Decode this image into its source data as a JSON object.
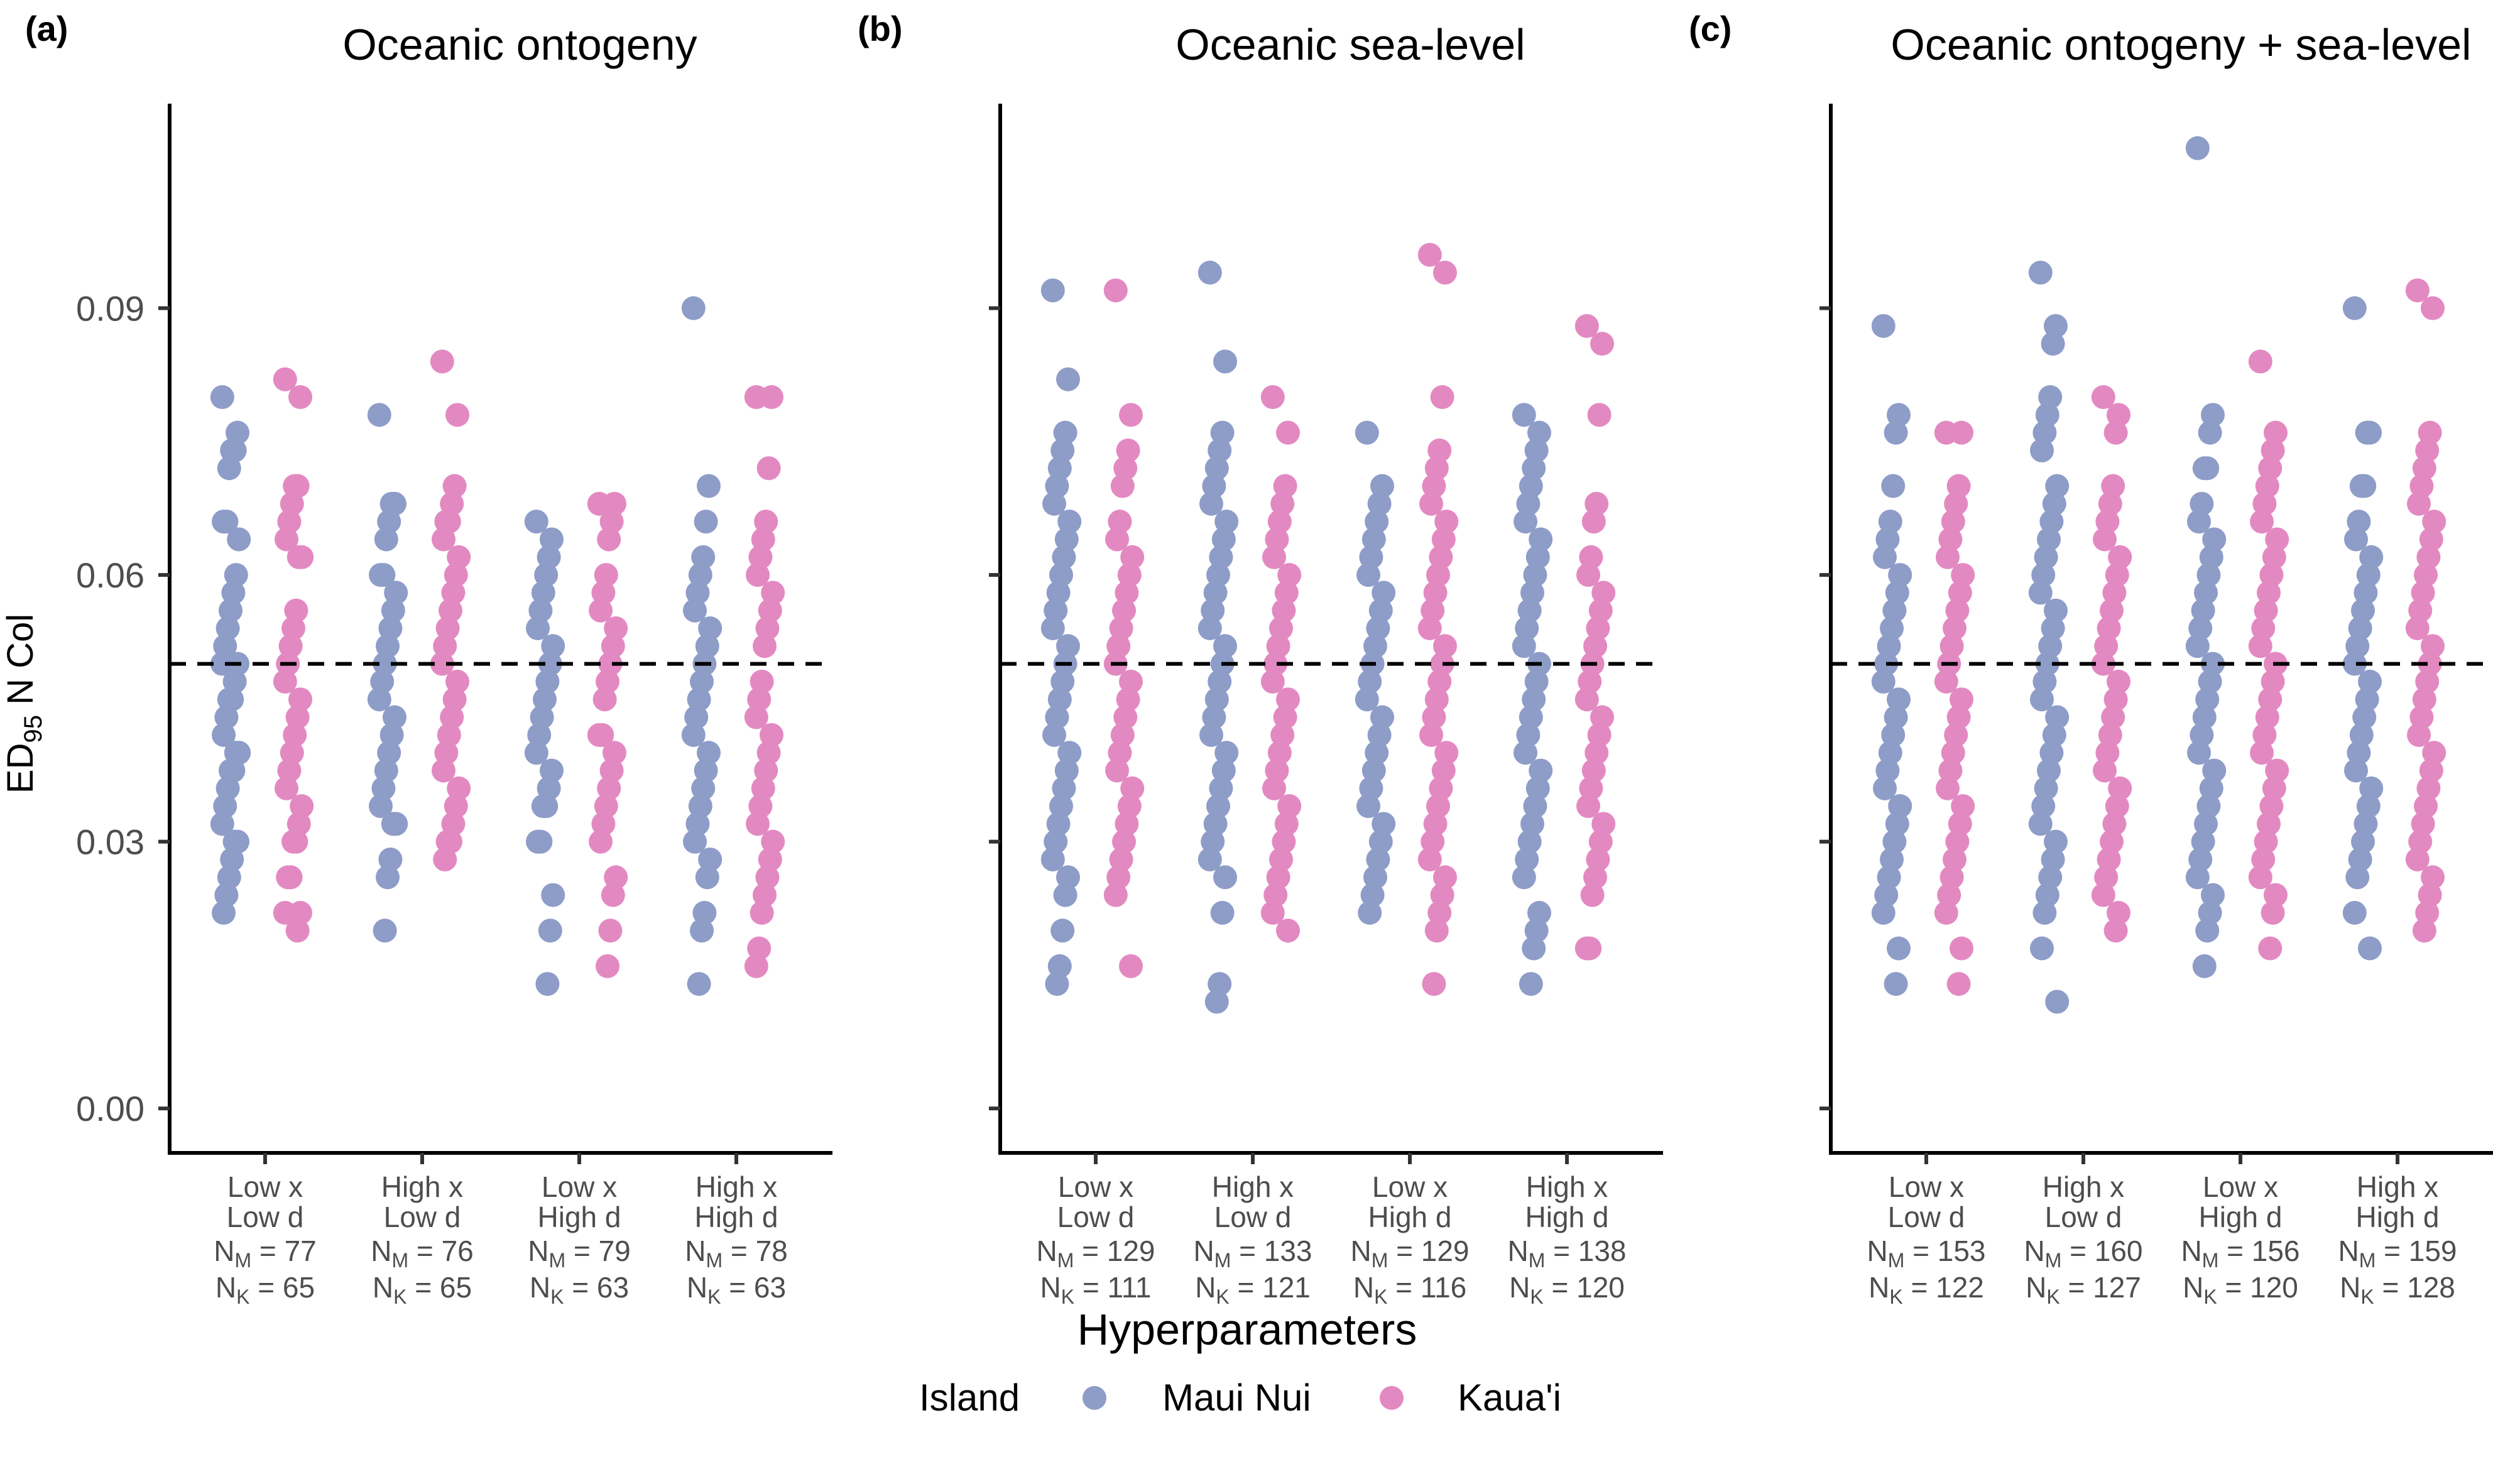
{
  "figure": {
    "ylabel_main": "ED",
    "ylabel_sub": "95",
    "ylabel_rest": " N Col",
    "xlabel": "Hyperparameters",
    "y_ticks": [
      "0.00",
      "0.03",
      "0.06",
      "0.09"
    ],
    "reference_line": 0.05,
    "legend": {
      "title": "Island",
      "items": [
        {
          "label": "Maui Nui",
          "color": "#8E9CC8"
        },
        {
          "label": "Kaua'i",
          "color": "#E389C2"
        }
      ]
    },
    "group_labels": [
      {
        "line1": "Low x",
        "line2": "Low d"
      },
      {
        "line1": "High x",
        "line2": "Low d"
      },
      {
        "line1": "Low x",
        "line2": "High d"
      },
      {
        "line1": "High x",
        "line2": "High d"
      }
    ]
  },
  "chart_data": [
    {
      "type": "scatter",
      "tag": "(a)",
      "title": "Oceanic ontogeny",
      "ylim": [
        -0.005,
        0.113
      ],
      "groups": [
        {
          "n_label_m": "N",
          "n_m": "77",
          "n_k": "65",
          "maui": [
            0.08,
            0.076,
            0.074,
            0.074,
            0.072,
            0.066,
            0.066,
            0.064,
            0.06,
            0.058,
            0.056,
            0.054,
            0.052,
            0.05,
            0.05,
            0.048,
            0.046,
            0.046,
            0.044,
            0.042,
            0.04,
            0.04,
            0.038,
            0.038,
            0.036,
            0.034,
            0.032,
            0.03,
            0.03,
            0.028,
            0.026,
            0.024,
            0.022
          ],
          "kauai": [
            0.082,
            0.08,
            0.07,
            0.07,
            0.068,
            0.066,
            0.064,
            0.062,
            0.062,
            0.056,
            0.054,
            0.052,
            0.05,
            0.048,
            0.046,
            0.044,
            0.042,
            0.04,
            0.038,
            0.036,
            0.034,
            0.032,
            0.03,
            0.03,
            0.026,
            0.026,
            0.022,
            0.022,
            0.02
          ]
        },
        {
          "n_m": "76",
          "n_k": "65",
          "maui": [
            0.078,
            0.068,
            0.068,
            0.066,
            0.064,
            0.06,
            0.06,
            0.058,
            0.056,
            0.054,
            0.052,
            0.05,
            0.048,
            0.046,
            0.044,
            0.042,
            0.04,
            0.038,
            0.036,
            0.034,
            0.032,
            0.032,
            0.028,
            0.026,
            0.02
          ],
          "kauai": [
            0.084,
            0.078,
            0.07,
            0.068,
            0.066,
            0.066,
            0.064,
            0.062,
            0.06,
            0.058,
            0.056,
            0.054,
            0.052,
            0.05,
            0.048,
            0.046,
            0.044,
            0.042,
            0.04,
            0.038,
            0.036,
            0.034,
            0.032,
            0.03,
            0.03,
            0.028
          ]
        },
        {
          "n_m": "79",
          "n_k": "63",
          "maui": [
            0.066,
            0.064,
            0.062,
            0.06,
            0.058,
            0.056,
            0.054,
            0.052,
            0.05,
            0.048,
            0.046,
            0.044,
            0.042,
            0.04,
            0.038,
            0.036,
            0.034,
            0.034,
            0.03,
            0.03,
            0.024,
            0.02,
            0.014
          ],
          "kauai": [
            0.068,
            0.068,
            0.066,
            0.064,
            0.06,
            0.058,
            0.056,
            0.054,
            0.052,
            0.05,
            0.048,
            0.046,
            0.042,
            0.042,
            0.04,
            0.038,
            0.036,
            0.034,
            0.032,
            0.03,
            0.026,
            0.024,
            0.02,
            0.016
          ]
        },
        {
          "n_m": "78",
          "n_k": "63",
          "maui": [
            0.09,
            0.07,
            0.066,
            0.062,
            0.06,
            0.058,
            0.056,
            0.054,
            0.052,
            0.05,
            0.048,
            0.046,
            0.044,
            0.042,
            0.04,
            0.038,
            0.036,
            0.034,
            0.032,
            0.03,
            0.028,
            0.026,
            0.022,
            0.02,
            0.014
          ],
          "kauai": [
            0.08,
            0.08,
            0.072,
            0.066,
            0.064,
            0.062,
            0.06,
            0.058,
            0.056,
            0.054,
            0.052,
            0.048,
            0.046,
            0.044,
            0.042,
            0.04,
            0.038,
            0.036,
            0.034,
            0.032,
            0.03,
            0.028,
            0.026,
            0.024,
            0.022,
            0.018,
            0.016
          ]
        }
      ]
    },
    {
      "type": "scatter",
      "tag": "(b)",
      "title": "Oceanic sea-level",
      "ylim": [
        -0.005,
        0.113
      ],
      "groups": [
        {
          "n_m": "129",
          "n_k": "111",
          "maui": [
            0.092,
            0.082,
            0.076,
            0.074,
            0.072,
            0.07,
            0.068,
            0.066,
            0.064,
            0.062,
            0.06,
            0.058,
            0.056,
            0.054,
            0.052,
            0.05,
            0.048,
            0.046,
            0.044,
            0.042,
            0.04,
            0.038,
            0.036,
            0.034,
            0.032,
            0.03,
            0.028,
            0.026,
            0.024,
            0.02,
            0.016,
            0.014
          ],
          "kauai": [
            0.092,
            0.078,
            0.074,
            0.072,
            0.07,
            0.066,
            0.064,
            0.062,
            0.06,
            0.058,
            0.056,
            0.054,
            0.052,
            0.05,
            0.048,
            0.046,
            0.044,
            0.042,
            0.04,
            0.038,
            0.036,
            0.034,
            0.032,
            0.03,
            0.028,
            0.026,
            0.024,
            0.016
          ]
        },
        {
          "n_m": "133",
          "n_k": "121",
          "maui": [
            0.094,
            0.084,
            0.076,
            0.074,
            0.072,
            0.07,
            0.068,
            0.066,
            0.064,
            0.062,
            0.06,
            0.058,
            0.056,
            0.054,
            0.052,
            0.05,
            0.048,
            0.046,
            0.044,
            0.042,
            0.04,
            0.038,
            0.036,
            0.034,
            0.032,
            0.03,
            0.028,
            0.026,
            0.022,
            0.014,
            0.012
          ],
          "kauai": [
            0.08,
            0.076,
            0.07,
            0.068,
            0.066,
            0.064,
            0.062,
            0.06,
            0.058,
            0.056,
            0.054,
            0.052,
            0.05,
            0.048,
            0.046,
            0.044,
            0.042,
            0.04,
            0.038,
            0.036,
            0.034,
            0.032,
            0.03,
            0.028,
            0.026,
            0.024,
            0.022,
            0.02
          ]
        },
        {
          "n_m": "129",
          "n_k": "116",
          "maui": [
            0.076,
            0.07,
            0.068,
            0.066,
            0.064,
            0.062,
            0.06,
            0.058,
            0.056,
            0.054,
            0.052,
            0.05,
            0.048,
            0.046,
            0.044,
            0.042,
            0.04,
            0.038,
            0.036,
            0.034,
            0.032,
            0.03,
            0.028,
            0.026,
            0.024,
            0.022
          ],
          "kauai": [
            0.096,
            0.094,
            0.08,
            0.074,
            0.072,
            0.07,
            0.068,
            0.066,
            0.064,
            0.062,
            0.06,
            0.058,
            0.056,
            0.054,
            0.052,
            0.05,
            0.048,
            0.046,
            0.044,
            0.042,
            0.04,
            0.038,
            0.036,
            0.034,
            0.032,
            0.03,
            0.028,
            0.026,
            0.024,
            0.022,
            0.02,
            0.014
          ]
        },
        {
          "n_m": "138",
          "n_k": "120",
          "maui": [
            0.078,
            0.076,
            0.074,
            0.072,
            0.07,
            0.068,
            0.066,
            0.064,
            0.062,
            0.06,
            0.058,
            0.056,
            0.054,
            0.052,
            0.05,
            0.048,
            0.046,
            0.044,
            0.042,
            0.04,
            0.038,
            0.036,
            0.034,
            0.032,
            0.03,
            0.028,
            0.026,
            0.022,
            0.02,
            0.018,
            0.014
          ],
          "kauai": [
            0.088,
            0.086,
            0.078,
            0.068,
            0.066,
            0.062,
            0.06,
            0.058,
            0.056,
            0.054,
            0.052,
            0.05,
            0.048,
            0.046,
            0.044,
            0.042,
            0.04,
            0.038,
            0.036,
            0.034,
            0.032,
            0.03,
            0.028,
            0.026,
            0.024,
            0.018,
            0.018
          ]
        }
      ]
    },
    {
      "type": "scatter",
      "tag": "(c)",
      "title": "Oceanic ontogeny + sea-level",
      "ylim": [
        -0.005,
        0.113
      ],
      "groups": [
        {
          "n_m": "153",
          "n_k": "122",
          "maui": [
            0.088,
            0.078,
            0.076,
            0.07,
            0.066,
            0.064,
            0.062,
            0.06,
            0.058,
            0.056,
            0.054,
            0.052,
            0.05,
            0.048,
            0.046,
            0.044,
            0.042,
            0.04,
            0.038,
            0.036,
            0.034,
            0.032,
            0.03,
            0.028,
            0.026,
            0.024,
            0.022,
            0.018,
            0.014
          ],
          "kauai": [
            0.076,
            0.076,
            0.07,
            0.068,
            0.066,
            0.064,
            0.062,
            0.06,
            0.058,
            0.056,
            0.054,
            0.052,
            0.05,
            0.048,
            0.046,
            0.044,
            0.042,
            0.04,
            0.038,
            0.036,
            0.034,
            0.032,
            0.03,
            0.028,
            0.026,
            0.024,
            0.022,
            0.018,
            0.014
          ]
        },
        {
          "n_m": "160",
          "n_k": "127",
          "maui": [
            0.094,
            0.088,
            0.086,
            0.08,
            0.078,
            0.076,
            0.074,
            0.07,
            0.068,
            0.066,
            0.064,
            0.062,
            0.06,
            0.058,
            0.056,
            0.054,
            0.052,
            0.05,
            0.048,
            0.046,
            0.044,
            0.042,
            0.04,
            0.038,
            0.036,
            0.034,
            0.032,
            0.03,
            0.028,
            0.026,
            0.024,
            0.022,
            0.018,
            0.012
          ],
          "kauai": [
            0.08,
            0.078,
            0.076,
            0.07,
            0.068,
            0.066,
            0.064,
            0.062,
            0.06,
            0.058,
            0.056,
            0.054,
            0.052,
            0.05,
            0.048,
            0.046,
            0.044,
            0.042,
            0.04,
            0.038,
            0.036,
            0.034,
            0.032,
            0.03,
            0.028,
            0.026,
            0.024,
            0.022,
            0.02
          ]
        },
        {
          "n_m": "156",
          "n_k": "120",
          "maui": [
            0.108,
            0.078,
            0.076,
            0.072,
            0.072,
            0.068,
            0.066,
            0.064,
            0.062,
            0.06,
            0.058,
            0.056,
            0.054,
            0.052,
            0.05,
            0.048,
            0.046,
            0.044,
            0.042,
            0.04,
            0.038,
            0.036,
            0.034,
            0.032,
            0.03,
            0.028,
            0.026,
            0.024,
            0.022,
            0.02,
            0.016
          ],
          "kauai": [
            0.084,
            0.076,
            0.074,
            0.072,
            0.07,
            0.068,
            0.066,
            0.064,
            0.062,
            0.06,
            0.058,
            0.056,
            0.054,
            0.052,
            0.05,
            0.048,
            0.046,
            0.044,
            0.042,
            0.04,
            0.038,
            0.036,
            0.034,
            0.032,
            0.03,
            0.028,
            0.026,
            0.024,
            0.022,
            0.018
          ]
        },
        {
          "n_m": "159",
          "n_k": "128",
          "maui": [
            0.09,
            0.076,
            0.076,
            0.07,
            0.07,
            0.066,
            0.064,
            0.062,
            0.06,
            0.058,
            0.056,
            0.054,
            0.052,
            0.05,
            0.048,
            0.046,
            0.044,
            0.042,
            0.04,
            0.038,
            0.036,
            0.034,
            0.032,
            0.03,
            0.028,
            0.026,
            0.022,
            0.018
          ],
          "kauai": [
            0.092,
            0.09,
            0.076,
            0.074,
            0.072,
            0.07,
            0.068,
            0.066,
            0.064,
            0.062,
            0.06,
            0.058,
            0.056,
            0.054,
            0.052,
            0.05,
            0.048,
            0.046,
            0.044,
            0.042,
            0.04,
            0.038,
            0.036,
            0.034,
            0.032,
            0.03,
            0.028,
            0.026,
            0.024,
            0.022,
            0.02
          ]
        }
      ]
    }
  ]
}
